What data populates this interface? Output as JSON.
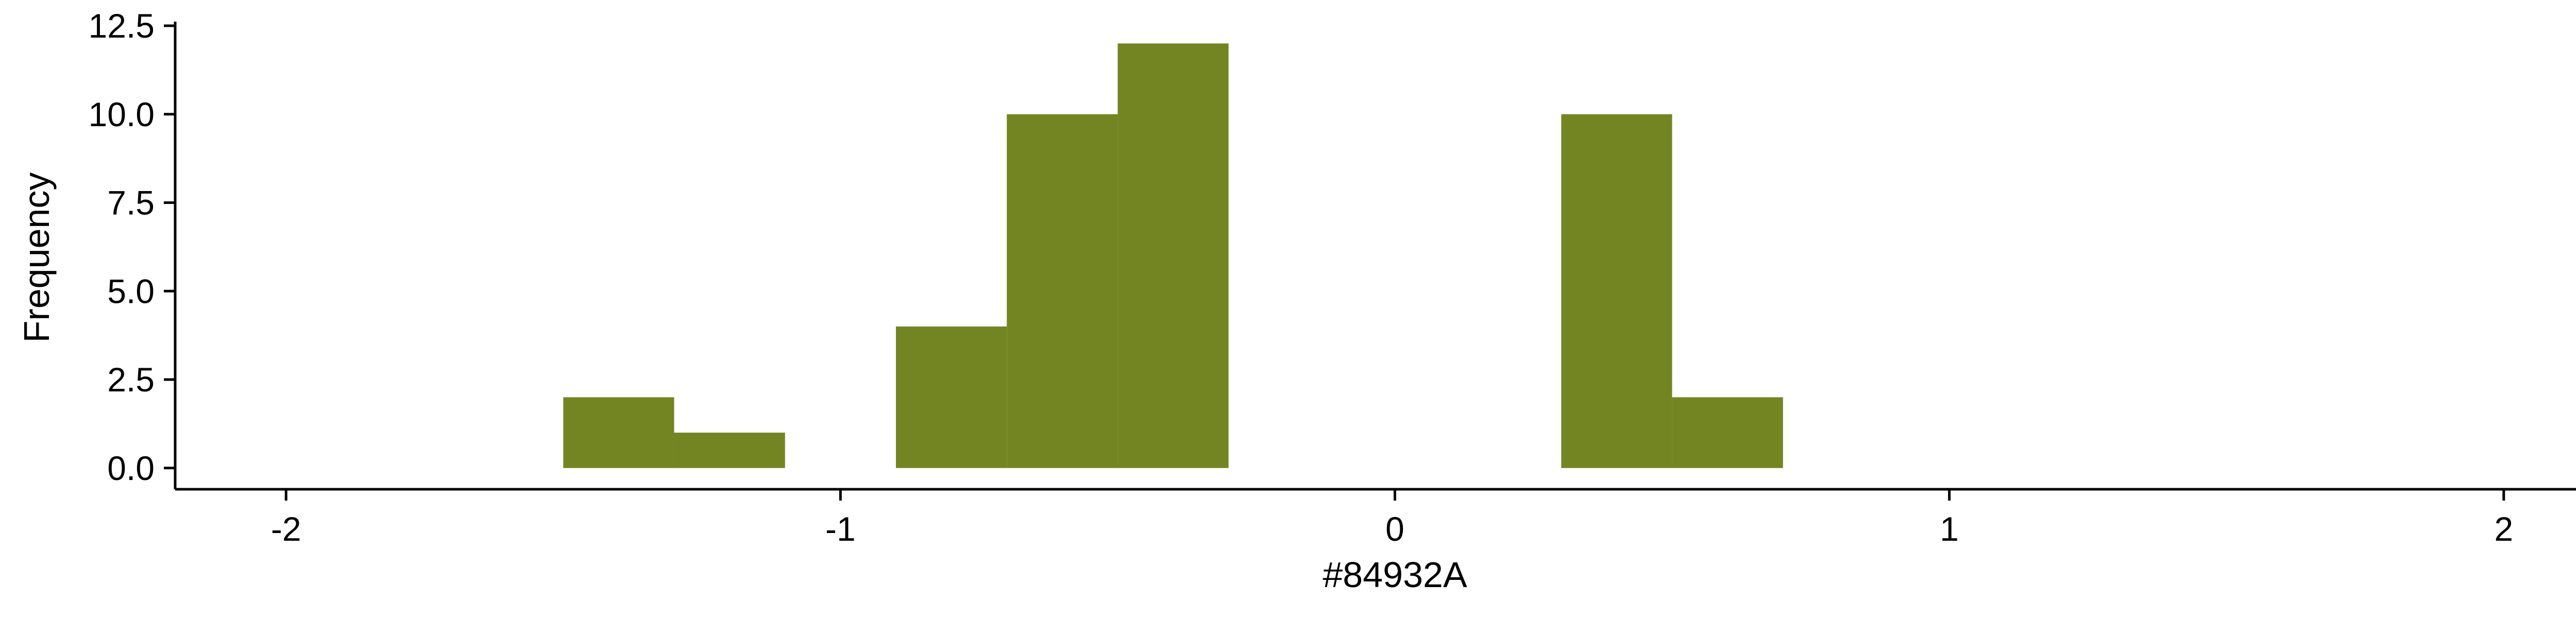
{
  "chart_data": {
    "type": "bar",
    "subtype": "histogram",
    "xlabel": "#84932A",
    "ylabel": "Frequency",
    "xlim": [
      -2.2,
      2.2
    ],
    "ylim": [
      -0.6,
      12.5
    ],
    "x_ticks": [
      -2,
      -1,
      0,
      1,
      2
    ],
    "x_tick_labels": [
      "-2",
      "-1",
      "0",
      "1",
      "2"
    ],
    "y_ticks": [
      0,
      2.5,
      5,
      7.5,
      10,
      12.5
    ],
    "y_tick_labels": [
      "0.0",
      "2.5",
      "5.0",
      "7.5",
      "10.0",
      "12.5"
    ],
    "bin_width": 0.2,
    "bins": [
      {
        "x0": -1.5,
        "x1": -1.3,
        "count": 2
      },
      {
        "x0": -1.3,
        "x1": -1.1,
        "count": 1
      },
      {
        "x0": -0.9,
        "x1": -0.7,
        "count": 4
      },
      {
        "x0": -0.7,
        "x1": -0.5,
        "count": 10
      },
      {
        "x0": -0.5,
        "x1": -0.3,
        "count": 12
      },
      {
        "x0": 0.3,
        "x1": 0.5,
        "count": 10
      },
      {
        "x0": 0.5,
        "x1": 0.7,
        "count": 2
      }
    ],
    "bar_color": "#738522",
    "axis_color": "#000000",
    "grid": false,
    "legend": "none"
  }
}
